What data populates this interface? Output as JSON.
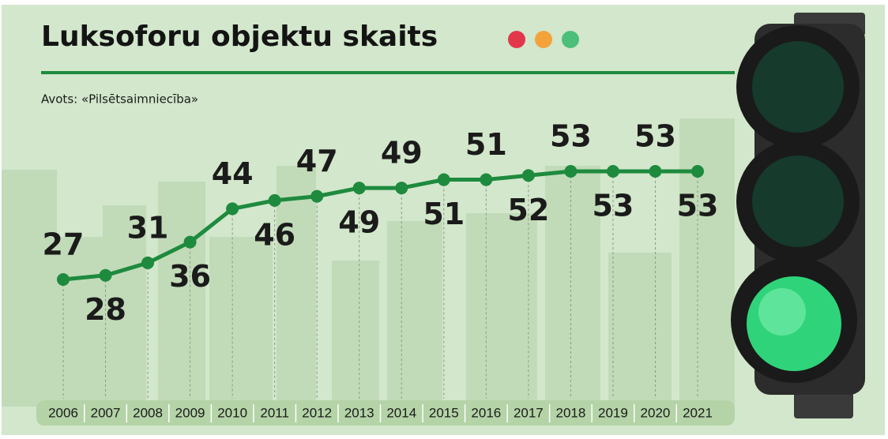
{
  "chart_data": {
    "type": "line",
    "title": "Luksoforu objektu skaits",
    "subtitle": "Avots: «Pilsētsaimniecība»",
    "categories": [
      "2006",
      "2007",
      "2008",
      "2009",
      "2010",
      "2011",
      "2012",
      "2013",
      "2014",
      "2015",
      "2016",
      "2017",
      "2018",
      "2019",
      "2020",
      "2021"
    ],
    "values": [
      27,
      28,
      31,
      36,
      44,
      46,
      47,
      49,
      49,
      51,
      51,
      52,
      53,
      53,
      53,
      53
    ],
    "color": "#1e8a3e"
  }
}
